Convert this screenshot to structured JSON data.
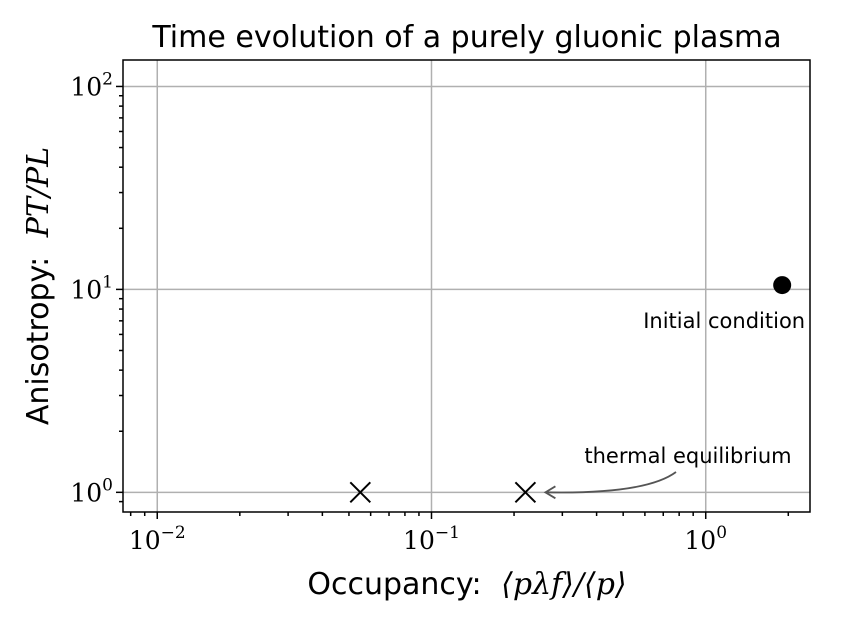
{
  "chart_data": {
    "type": "scatter",
    "title": "Time evolution of a purely gluonic plasma",
    "xlabel": {
      "text": "Occupancy:",
      "math": "⟨pλf⟩/⟨p⟩"
    },
    "ylabel": {
      "text": "Anisotropy:",
      "math": "PT/PL"
    },
    "x_scale": "log",
    "y_scale": "log",
    "xlim": [
      0.0075,
      2.4
    ],
    "ylim": [
      0.8,
      135
    ],
    "grid": true,
    "x_ticks": [
      {
        "value": 0.01,
        "base": "10",
        "exp": "−2"
      },
      {
        "value": 0.1,
        "base": "10",
        "exp": "−1"
      },
      {
        "value": 1,
        "base": "10",
        "exp": "0"
      }
    ],
    "y_ticks": [
      {
        "value": 1,
        "base": "10",
        "exp": "0"
      },
      {
        "value": 10,
        "base": "10",
        "exp": "1"
      },
      {
        "value": 100,
        "base": "10",
        "exp": "2"
      }
    ],
    "points": [
      {
        "x": 1.9,
        "y": 10.5,
        "marker": "circle",
        "color": "#000000",
        "label": "Initial condition"
      },
      {
        "x": 0.055,
        "y": 1.0,
        "marker": "x",
        "color": "#000000"
      },
      {
        "x": 0.22,
        "y": 1.0,
        "marker": "x",
        "color": "#000000"
      }
    ],
    "annotations": [
      {
        "text": "thermal equilibrium",
        "x": 0.22,
        "y": 1.0,
        "arrow": true,
        "arrow_color": "#555555"
      }
    ]
  }
}
